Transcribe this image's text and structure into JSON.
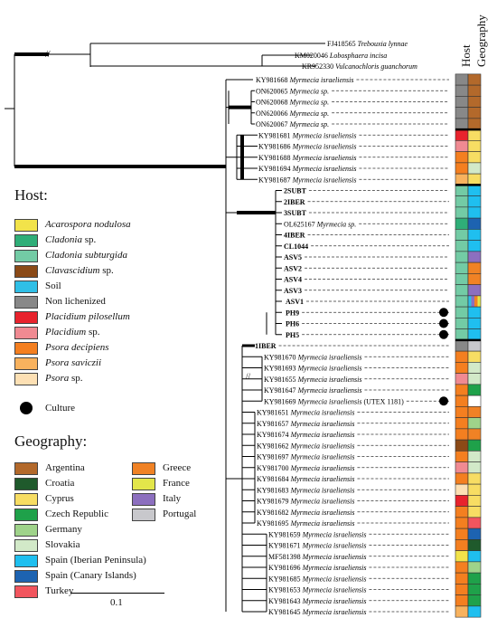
{
  "columns": {
    "host": "Host",
    "geography": "Geography"
  },
  "host_legend": {
    "title": "Host:",
    "items": [
      {
        "label": "Acarospora nodulosa",
        "italic": true,
        "color": "#f2e34a"
      },
      {
        "label": "Cladonia",
        "suffix": " sp.",
        "italic": true,
        "color": "#2fae78"
      },
      {
        "label": "Cladonia subturgida",
        "italic": true,
        "color": "#73cba5"
      },
      {
        "label": "Clavascidium",
        "suffix": " sp.",
        "italic": true,
        "color": "#8b4a17"
      },
      {
        "label": "Soil",
        "italic": false,
        "color": "#2fbfe6"
      },
      {
        "label": "Non lichenized",
        "italic": false,
        "color": "#888888"
      },
      {
        "label": "Placidium pilosellum",
        "italic": true,
        "color": "#e8232d"
      },
      {
        "label": "Placidium",
        "suffix": " sp.",
        "italic": true,
        "color": "#f08a92"
      },
      {
        "label": "Psora decipiens",
        "italic": true,
        "color": "#f47f20"
      },
      {
        "label": "Psora saviczii",
        "italic": true,
        "color": "#f8b25e"
      },
      {
        "label": "Psora",
        "suffix": " sp.",
        "italic": true,
        "color": "#fde0b4"
      }
    ],
    "culture_label": "Culture"
  },
  "geo_legend": {
    "title": "Geography:",
    "items": [
      {
        "label": "Argentina",
        "color": "#b3692b"
      },
      {
        "label": "Croatia",
        "color": "#1f5a2c"
      },
      {
        "label": "Cyprus",
        "color": "#f7dd63"
      },
      {
        "label": "Czech Republic",
        "color": "#1fa14a"
      },
      {
        "label": "Germany",
        "color": "#9fd38a"
      },
      {
        "label": "Slovakia",
        "color": "#d2e9c8"
      },
      {
        "label": "Spain (Iberian Peninsula)",
        "color": "#1fbfef"
      },
      {
        "label": "Spain (Canary Islands)",
        "color": "#1d63b1"
      },
      {
        "label": "Turkey",
        "color": "#f2555e"
      },
      {
        "label": "Greece",
        "color": "#f08225"
      },
      {
        "label": "France",
        "color": "#e3e64a"
      },
      {
        "label": "Italy",
        "color": "#8c6fbf"
      },
      {
        "label": "Portugal",
        "color": "#c8c8cc"
      }
    ]
  },
  "scale_label": "0.1",
  "outgroup": [
    {
      "acc": "FJ418565",
      "sp": "Trebouxia lynnae"
    },
    {
      "acc": "KM020046",
      "sp": "Lobosphaera incisa"
    },
    {
      "acc": "KR952330",
      "sp": "Vulcanochloris guanchorum"
    }
  ],
  "taxa": [
    {
      "acc": "KY981668",
      "sp": "Myrmecia israeliensis",
      "host": "Non lichenized",
      "geo": "Argentina"
    },
    {
      "acc": "ON620065",
      "sp": "Myrmecia sp.",
      "host": "Non lichenized",
      "geo": "Argentina"
    },
    {
      "acc": "ON620068",
      "sp": "Myrmecia sp.",
      "host": "Non lichenized",
      "geo": "Argentina"
    },
    {
      "acc": "ON620066",
      "sp": "Myrmecia sp.",
      "host": "Non lichenized",
      "geo": "Argentina"
    },
    {
      "acc": "ON620067",
      "sp": "Myrmecia sp.",
      "host": "Non lichenized",
      "geo": "Argentina"
    },
    {
      "acc": "KY981681",
      "sp": "Myrmecia israeliensis",
      "host": "Placidium pilosellum",
      "geo": "Cyprus"
    },
    {
      "acc": "KY981686",
      "sp": "Myrmecia israeliensis",
      "host": "Placidium sp.",
      "geo": "Cyprus"
    },
    {
      "acc": "KY981688",
      "sp": "Myrmecia israeliensis",
      "host": "Psora decipiens",
      "geo": "Cyprus"
    },
    {
      "acc": "KY981694",
      "sp": "Myrmecia israeliensis",
      "host": "Psora decipiens",
      "geo": "Slovakia"
    },
    {
      "acc": "KY981687",
      "sp": "Myrmecia israeliensis",
      "host": "Psora saviczii",
      "geo": "Cyprus"
    },
    {
      "acc": "2SUBT",
      "sp": "",
      "host": "Cladonia subturgida",
      "geo": "Spain (Iberian Peninsula)"
    },
    {
      "acc": "2IBER",
      "sp": "",
      "host": "Cladonia subturgida",
      "geo": "Spain (Iberian Peninsula)"
    },
    {
      "acc": "3SUBT",
      "sp": "",
      "host": "Cladonia subturgida",
      "geo": "Spain (Iberian Peninsula)"
    },
    {
      "acc": "OL625167",
      "sp": "Myrmecia sp.",
      "host": "Cladonia sp.",
      "geo": "Spain (Canary Islands)"
    },
    {
      "acc": "4IBER",
      "sp": "",
      "host": "Cladonia subturgida",
      "geo": "Spain (Iberian Peninsula)"
    },
    {
      "acc": "CL1044",
      "sp": "",
      "host": "Cladonia subturgida",
      "geo": "Spain (Iberian Peninsula)"
    },
    {
      "acc": "ASV5",
      "sp": "",
      "host": "Cladonia subturgida",
      "geo": "Italy"
    },
    {
      "acc": "ASV2",
      "sp": "",
      "host": "Cladonia subturgida",
      "geo": "Greece"
    },
    {
      "acc": "ASV4",
      "sp": "",
      "host": "Cladonia subturgida",
      "geo": "Greece"
    },
    {
      "acc": "ASV3",
      "sp": "",
      "host": "Cladonia subturgida",
      "geo": "Italy"
    },
    {
      "acc": "ASV1",
      "sp": "",
      "host": "Cladonia subturgida",
      "geo": "multi"
    },
    {
      "acc": "PH9",
      "sp": "",
      "host": "Cladonia subturgida",
      "geo": "Spain (Iberian Peninsula)",
      "culture": true
    },
    {
      "acc": "PH6",
      "sp": "",
      "host": "Cladonia subturgida",
      "geo": "Spain (Iberian Peninsula)",
      "culture": true
    },
    {
      "acc": "PH5",
      "sp": "",
      "host": "Cladonia subturgida",
      "geo": "Spain (Iberian Peninsula)",
      "culture": true
    },
    {
      "acc": "1IBER",
      "sp": "",
      "host": "Non lichenized",
      "geo": "Portugal"
    },
    {
      "acc": "KY981670",
      "sp": "Myrmecia israeliensis",
      "host": "Psora decipiens",
      "geo": "Cyprus"
    },
    {
      "acc": "KY981693",
      "sp": "Myrmecia israeliensis",
      "host": "Psora decipiens",
      "geo": "Slovakia"
    },
    {
      "acc": "KY981655",
      "sp": "Myrmecia israeliensis",
      "host": "Placidium sp.",
      "geo": "Slovakia"
    },
    {
      "acc": "KY981647",
      "sp": "Myrmecia israeliensis",
      "host": "Psora decipiens",
      "geo": "Czech Republic"
    },
    {
      "acc": "KY981669",
      "sp": "Myrmecia israeliensis",
      "note": "(UTEX 1181)",
      "host": "Psora decipiens",
      "geo": "none",
      "culture": true
    },
    {
      "acc": "KY981651",
      "sp": "Myrmecia israeliensis",
      "host": "Psora decipiens",
      "geo": "Greece"
    },
    {
      "acc": "KY981657",
      "sp": "Myrmecia israeliensis",
      "host": "Psora decipiens",
      "geo": "Germany"
    },
    {
      "acc": "KY981674",
      "sp": "Myrmecia israeliensis",
      "host": "Psora decipiens",
      "geo": "Greece"
    },
    {
      "acc": "KY981662",
      "sp": "Myrmecia israeliensis",
      "host": "Clavascidium sp.",
      "geo": "Czech Republic"
    },
    {
      "acc": "KY981697",
      "sp": "Myrmecia israeliensis",
      "host": "Psora decipiens",
      "geo": "Slovakia"
    },
    {
      "acc": "KY981700",
      "sp": "Myrmecia israeliensis",
      "host": "Placidium sp.",
      "geo": "Slovakia"
    },
    {
      "acc": "KY981684",
      "sp": "Myrmecia israeliensis",
      "host": "Psora decipiens",
      "geo": "Cyprus"
    },
    {
      "acc": "KY981683",
      "sp": "Myrmecia israeliensis",
      "host": "Psora sp.",
      "geo": "Cyprus"
    },
    {
      "acc": "KY981679",
      "sp": "Myrmecia israeliensis",
      "host": "Placidium pilosellum",
      "geo": "Cyprus"
    },
    {
      "acc": "KY981682",
      "sp": "Myrmecia israeliensis",
      "host": "Psora decipiens",
      "geo": "Cyprus"
    },
    {
      "acc": "KY981695",
      "sp": "Myrmecia israeliensis",
      "host": "Psora decipiens",
      "geo": "Turkey"
    },
    {
      "acc": "KY981659",
      "sp": "Myrmecia israeliensis",
      "host": "Psora decipiens",
      "geo": "Spain (Canary Islands)"
    },
    {
      "acc": "KY981671",
      "sp": "Myrmecia israeliensis",
      "host": "Psora decipiens",
      "geo": "Croatia"
    },
    {
      "acc": "MF581398",
      "sp": "Myrmecia israeliensis",
      "host": "Acarospora nodulosa",
      "geo": "Spain (Iberian Peninsula)"
    },
    {
      "acc": "KY981696",
      "sp": "Myrmecia israeliensis",
      "host": "Psora decipiens",
      "geo": "Germany"
    },
    {
      "acc": "KY981685",
      "sp": "Myrmecia israeliensis",
      "host": "Psora decipiens",
      "geo": "Czech Republic"
    },
    {
      "acc": "KY981653",
      "sp": "Myrmecia israeliensis",
      "host": "Psora decipiens",
      "geo": "Czech Republic"
    },
    {
      "acc": "KY981643",
      "sp": "Myrmecia israeliensis",
      "host": "Psora decipiens",
      "geo": "Czech Republic"
    },
    {
      "acc": "KY981645",
      "sp": "Myrmecia israeliensis",
      "host": "Psora saviczii",
      "geo": "Spain (Iberian Peninsula)"
    }
  ]
}
